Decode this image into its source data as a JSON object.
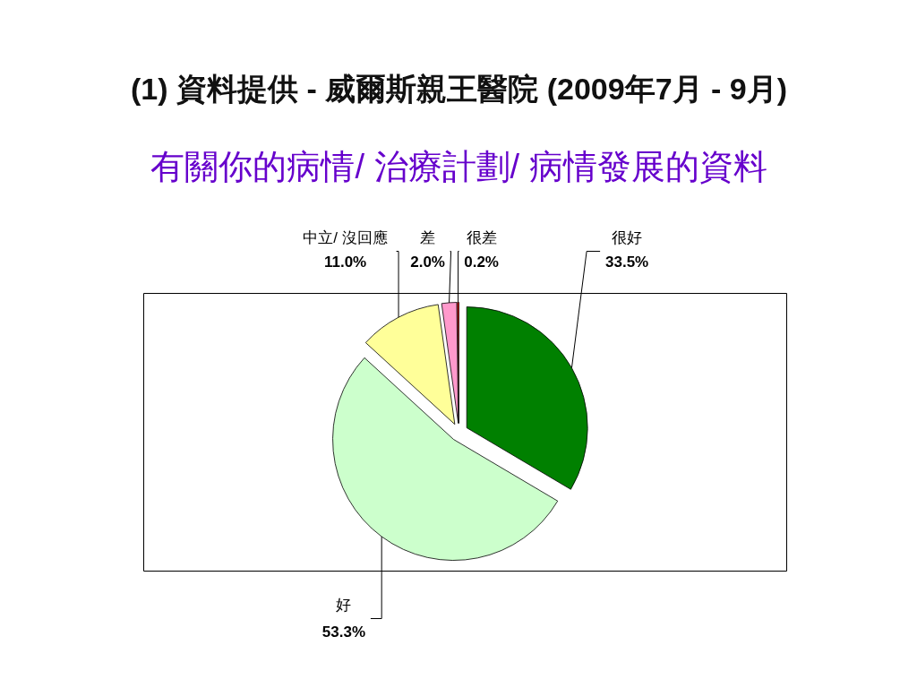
{
  "chart_data": {
    "type": "pie",
    "title": "(1) 資料提供 - 威爾斯親王醫院 (2009年7月 - 9月)",
    "subtitle": "有關你的病情/ 治療計劃/ 病情發展的資料",
    "categories": [
      "很好",
      "好",
      "中立/ 沒回應",
      "差",
      "很差"
    ],
    "values": [
      33.5,
      53.3,
      11.0,
      2.0,
      0.2
    ],
    "colors": [
      "#008000",
      "#ccffcc",
      "#ffff99",
      "#ff99cc",
      "#ff0000"
    ],
    "value_labels": [
      "33.5%",
      "53.3%",
      "11.0%",
      "2.0%",
      "0.2%"
    ]
  }
}
